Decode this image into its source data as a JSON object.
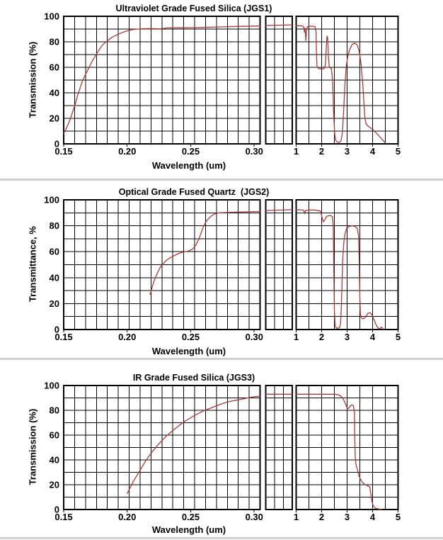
{
  "page": {
    "background": "#ffffff",
    "separator_color": "#d4d4d4",
    "grid_color": "#000000",
    "text_color": "#000000"
  },
  "chart_data": [
    {
      "type": "line",
      "title": "Ultraviolet Grade Fused Silica (JGS1)",
      "xlabel": "Wavelength (um)",
      "ylabel": "Transmission (%)",
      "grid": true,
      "axis_break": true,
      "curve_color": "#a83a3a",
      "ylim": [
        0,
        100
      ],
      "y_ticks": [
        0,
        20,
        40,
        60,
        80,
        100
      ],
      "x_left": {
        "lim": [
          0.15,
          0.3046
        ],
        "tick_values": [
          0.15,
          0.2,
          0.25,
          0.3
        ],
        "tick_labels": [
          "0.15",
          "0.20",
          "0.25",
          "0.30"
        ]
      },
      "x_right": {
        "lim": [
          1,
          5
        ],
        "tick_values": [
          1,
          2,
          3,
          4,
          5
        ],
        "tick_labels": [
          "1",
          "2",
          "3",
          "4",
          "5"
        ]
      },
      "series": {
        "left": [
          [
            0.15,
            8
          ],
          [
            0.1525,
            13
          ],
          [
            0.155,
            19
          ],
          [
            0.157,
            25
          ],
          [
            0.159,
            31
          ],
          [
            0.161,
            38
          ],
          [
            0.163,
            44
          ],
          [
            0.165,
            50
          ],
          [
            0.1675,
            55
          ],
          [
            0.17,
            60
          ],
          [
            0.1725,
            65
          ],
          [
            0.175,
            69
          ],
          [
            0.178,
            74
          ],
          [
            0.181,
            78
          ],
          [
            0.184,
            80.5
          ],
          [
            0.188,
            83.5
          ],
          [
            0.193,
            86
          ],
          [
            0.198,
            88
          ],
          [
            0.204,
            89.5
          ],
          [
            0.211,
            90.2
          ],
          [
            0.218,
            90.4
          ],
          [
            0.2235,
            90.2
          ],
          [
            0.2275,
            90.3
          ],
          [
            0.231,
            90.9
          ],
          [
            0.24,
            91
          ],
          [
            0.25,
            91.1
          ],
          [
            0.26,
            91.3
          ],
          [
            0.27,
            91.6
          ],
          [
            0.28,
            91.9
          ],
          [
            0.29,
            92.1
          ],
          [
            0.3046,
            92.4
          ]
        ],
        "mid_level": [
          92.8,
          93.3
        ],
        "right": [
          [
            1.0,
            92.6
          ],
          [
            1.15,
            92.6
          ],
          [
            1.26,
            92.3
          ],
          [
            1.3,
            91.5
          ],
          [
            1.325,
            87.5
          ],
          [
            1.35,
            90.8
          ],
          [
            1.38,
            81
          ],
          [
            1.405,
            88
          ],
          [
            1.435,
            91.8
          ],
          [
            1.55,
            92.3
          ],
          [
            1.65,
            92.2
          ],
          [
            1.74,
            91.8
          ],
          [
            1.78,
            88
          ],
          [
            1.8,
            70
          ],
          [
            1.82,
            60
          ],
          [
            1.9,
            59
          ],
          [
            2.0,
            58.8
          ],
          [
            2.1,
            59
          ],
          [
            2.15,
            62
          ],
          [
            2.18,
            75
          ],
          [
            2.21,
            84.5
          ],
          [
            2.24,
            83
          ],
          [
            2.27,
            68
          ],
          [
            2.3,
            60
          ],
          [
            2.38,
            59
          ],
          [
            2.43,
            50
          ],
          [
            2.47,
            25
          ],
          [
            2.51,
            8
          ],
          [
            2.55,
            3
          ],
          [
            2.6,
            1.5
          ],
          [
            2.7,
            1.2
          ],
          [
            2.76,
            2.5
          ],
          [
            2.81,
            8
          ],
          [
            2.86,
            25
          ],
          [
            2.91,
            45
          ],
          [
            2.96,
            60
          ],
          [
            3.02,
            68
          ],
          [
            3.1,
            74
          ],
          [
            3.2,
            78
          ],
          [
            3.3,
            79
          ],
          [
            3.4,
            77.5
          ],
          [
            3.48,
            72
          ],
          [
            3.55,
            62
          ],
          [
            3.61,
            48
          ],
          [
            3.66,
            32
          ],
          [
            3.7,
            20
          ],
          [
            3.74,
            16
          ],
          [
            3.82,
            14
          ],
          [
            3.92,
            12.5
          ],
          [
            4.02,
            11
          ],
          [
            4.12,
            9
          ],
          [
            4.22,
            7
          ],
          [
            4.32,
            4.8
          ],
          [
            4.42,
            2.5
          ],
          [
            4.5,
            0.8
          ]
        ]
      }
    },
    {
      "type": "line",
      "title": "Optical Grade Fused Quartz  (JGS2)",
      "xlabel": "Wavelength (um)",
      "ylabel": "Transmittance, %",
      "grid": true,
      "axis_break": true,
      "curve_color": "#a83a3a",
      "ylim": [
        0,
        100
      ],
      "y_ticks": [
        0,
        20,
        40,
        60,
        80,
        100
      ],
      "x_left": {
        "lim": [
          0.15,
          0.3046
        ],
        "tick_values": [
          0.15,
          0.2,
          0.25,
          0.3
        ],
        "tick_labels": [
          "0.15",
          "0.20",
          "0.25",
          "0.30"
        ]
      },
      "x_right": {
        "lim": [
          1,
          5
        ],
        "tick_values": [
          1,
          2,
          3,
          4,
          5
        ],
        "tick_labels": [
          "1",
          "2",
          "3",
          "4",
          "5"
        ]
      },
      "series": {
        "left": [
          [
            0.218,
            27
          ],
          [
            0.2195,
            32
          ],
          [
            0.221,
            37
          ],
          [
            0.2235,
            43
          ],
          [
            0.226,
            48
          ],
          [
            0.2285,
            51
          ],
          [
            0.231,
            53.5
          ],
          [
            0.235,
            56
          ],
          [
            0.239,
            58
          ],
          [
            0.243,
            59.5
          ],
          [
            0.248,
            60.5
          ],
          [
            0.2515,
            62
          ],
          [
            0.254,
            65
          ],
          [
            0.2565,
            70
          ],
          [
            0.2585,
            75.5
          ],
          [
            0.2605,
            80.5
          ],
          [
            0.263,
            84.5
          ],
          [
            0.2655,
            87
          ],
          [
            0.2685,
            89
          ],
          [
            0.272,
            90
          ],
          [
            0.28,
            90.3
          ],
          [
            0.29,
            90.6
          ],
          [
            0.3046,
            91
          ]
        ],
        "mid_level": [
          91.8,
          92.4
        ],
        "right": [
          [
            1.0,
            92.3
          ],
          [
            1.2,
            92.3
          ],
          [
            1.3,
            92
          ],
          [
            1.335,
            89.3
          ],
          [
            1.37,
            91.8
          ],
          [
            1.5,
            92.2
          ],
          [
            1.7,
            92.2
          ],
          [
            1.9,
            91.7
          ],
          [
            1.97,
            90.8
          ],
          [
            2.02,
            86
          ],
          [
            2.07,
            83
          ],
          [
            2.13,
            84.8
          ],
          [
            2.2,
            87.3
          ],
          [
            2.32,
            88
          ],
          [
            2.42,
            87.3
          ],
          [
            2.455,
            80
          ],
          [
            2.48,
            45
          ],
          [
            2.5,
            15
          ],
          [
            2.53,
            3
          ],
          [
            2.58,
            1.2
          ],
          [
            2.65,
            1
          ],
          [
            2.7,
            1.5
          ],
          [
            2.74,
            4
          ],
          [
            2.77,
            15
          ],
          [
            2.8,
            35
          ],
          [
            2.83,
            55
          ],
          [
            2.87,
            67
          ],
          [
            2.92,
            74
          ],
          [
            2.98,
            78
          ],
          [
            3.08,
            79.5
          ],
          [
            3.2,
            80
          ],
          [
            3.3,
            79.5
          ],
          [
            3.4,
            78
          ],
          [
            3.45,
            72
          ],
          [
            3.475,
            55
          ],
          [
            3.5,
            25
          ],
          [
            3.52,
            12
          ],
          [
            3.56,
            9
          ],
          [
            3.63,
            8.2
          ],
          [
            3.72,
            9.5
          ],
          [
            3.82,
            12.5
          ],
          [
            3.9,
            13
          ],
          [
            3.97,
            11.5
          ],
          [
            4.05,
            8
          ],
          [
            4.13,
            4
          ],
          [
            4.2,
            1.5
          ],
          [
            4.28,
            0.5
          ],
          [
            4.35,
            1.8
          ],
          [
            4.42,
            0.3
          ]
        ]
      }
    },
    {
      "type": "line",
      "title": "IR Grade Fused Silica (JGS3)",
      "xlabel": "Wavelength (um)",
      "ylabel": "Transmission (%)",
      "grid": true,
      "axis_break": true,
      "curve_color": "#a83a3a",
      "ylim": [
        0,
        100
      ],
      "y_ticks": [
        0,
        20,
        40,
        60,
        80,
        100
      ],
      "x_left": {
        "lim": [
          0.15,
          0.3046
        ],
        "tick_values": [
          0.15,
          0.2,
          0.25,
          0.3
        ],
        "tick_labels": [
          "0.15",
          "0.20",
          "0.25",
          "0.30"
        ]
      },
      "x_right": {
        "lim": [
          1,
          5
        ],
        "tick_values": [
          1,
          2,
          3,
          4,
          5
        ],
        "tick_labels": [
          "1",
          "2",
          "3",
          "4",
          "5"
        ]
      },
      "series": {
        "left": [
          [
            0.2,
            13
          ],
          [
            0.205,
            23
          ],
          [
            0.21,
            31.5
          ],
          [
            0.215,
            40
          ],
          [
            0.22,
            47
          ],
          [
            0.225,
            53
          ],
          [
            0.23,
            58.5
          ],
          [
            0.235,
            63
          ],
          [
            0.24,
            67
          ],
          [
            0.245,
            71
          ],
          [
            0.25,
            74
          ],
          [
            0.255,
            77
          ],
          [
            0.26,
            79.5
          ],
          [
            0.265,
            81.5
          ],
          [
            0.27,
            83.5
          ],
          [
            0.275,
            85.5
          ],
          [
            0.28,
            87
          ],
          [
            0.285,
            88
          ],
          [
            0.29,
            89
          ],
          [
            0.295,
            90
          ],
          [
            0.3,
            91
          ],
          [
            0.3046,
            91.3
          ]
        ],
        "mid_level": [
          93,
          93
        ],
        "right": [
          [
            1.0,
            93
          ],
          [
            1.6,
            93
          ],
          [
            2.2,
            93
          ],
          [
            2.5,
            93
          ],
          [
            2.62,
            92.7
          ],
          [
            2.72,
            92
          ],
          [
            2.82,
            90
          ],
          [
            2.9,
            87
          ],
          [
            2.97,
            83.5
          ],
          [
            3.02,
            81.5
          ],
          [
            3.07,
            81.8
          ],
          [
            3.13,
            83.7
          ],
          [
            3.19,
            84.3
          ],
          [
            3.25,
            83.8
          ],
          [
            3.285,
            78
          ],
          [
            3.3,
            58
          ],
          [
            3.32,
            42
          ],
          [
            3.35,
            36
          ],
          [
            3.4,
            32.5
          ],
          [
            3.46,
            27.5
          ],
          [
            3.53,
            24
          ],
          [
            3.62,
            21.5
          ],
          [
            3.72,
            20
          ],
          [
            3.82,
            19
          ],
          [
            3.89,
            18.3
          ],
          [
            3.93,
            13
          ],
          [
            3.97,
            7
          ],
          [
            4.01,
            4
          ],
          [
            4.06,
            2
          ],
          [
            4.12,
            1
          ],
          [
            4.22,
            0.5
          ],
          [
            4.35,
            0.2
          ]
        ]
      }
    }
  ]
}
